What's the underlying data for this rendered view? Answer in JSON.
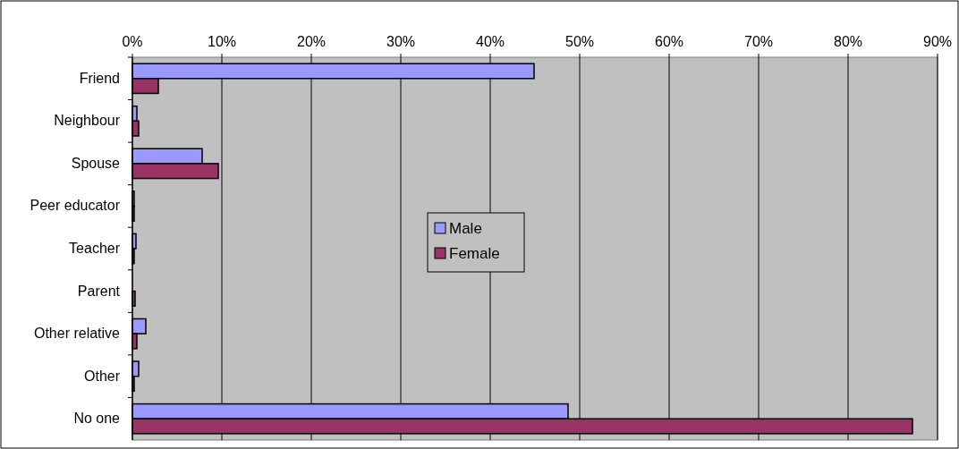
{
  "chart_data": {
    "type": "bar",
    "orientation": "horizontal",
    "categories": [
      "Friend",
      "Neighbour",
      "Spouse",
      "Peer educator",
      "Teacher",
      "Parent",
      "Other relative",
      "Other",
      "No one"
    ],
    "series": [
      {
        "name": "Male",
        "color": "#9999ff",
        "values": [
          44.9,
          0.5,
          7.8,
          0.2,
          0.4,
          0,
          1.5,
          0.7,
          48.7
        ]
      },
      {
        "name": "Female",
        "color": "#993366",
        "values": [
          2.9,
          0.7,
          9.6,
          0.2,
          0.2,
          0.3,
          0.5,
          0.2,
          87.2
        ]
      }
    ],
    "xlim": [
      0,
      90
    ],
    "xticks": [
      {
        "value": 0,
        "label": "0%"
      },
      {
        "value": 10,
        "label": "10%"
      },
      {
        "value": 20,
        "label": "20%"
      },
      {
        "value": 30,
        "label": "30%"
      },
      {
        "value": 40,
        "label": "40%"
      },
      {
        "value": 50,
        "label": "50%"
      },
      {
        "value": 60,
        "label": "60%"
      },
      {
        "value": 70,
        "label": "70%"
      },
      {
        "value": 80,
        "label": "80%"
      },
      {
        "value": 90,
        "label": "90%"
      }
    ],
    "grid": "x",
    "legend": "center"
  }
}
